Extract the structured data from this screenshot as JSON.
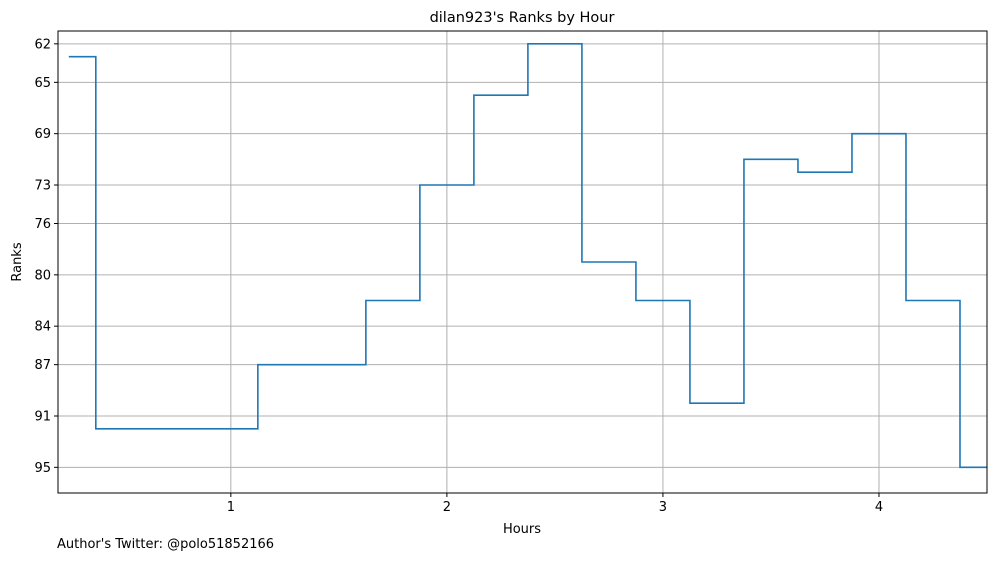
{
  "chart_data": {
    "type": "line",
    "step": "mid",
    "title": "dilan923's Ranks by Hour",
    "xlabel": "Hours",
    "ylabel": "Ranks",
    "y_inverted": true,
    "grid": true,
    "xlim": [
      0.2,
      4.5
    ],
    "ylim": [
      97,
      61
    ],
    "x_ticks": [
      1,
      2,
      3,
      4
    ],
    "x_tick_labels": [
      "1",
      "2",
      "3",
      "4"
    ],
    "y_ticks": [
      62,
      65,
      69,
      73,
      76,
      80,
      84,
      87,
      91,
      95
    ],
    "y_tick_labels": [
      "62",
      "65",
      "69",
      "73",
      "76",
      "80",
      "84",
      "87",
      "91",
      "95"
    ],
    "color": "#1f77b4",
    "series": [
      {
        "x": [
          0.25,
          0.5,
          0.75,
          1.0,
          1.25,
          1.5,
          1.75,
          2.0,
          2.25,
          2.5,
          2.75,
          3.0,
          3.25,
          3.5,
          3.75,
          4.0,
          4.25,
          4.5
        ],
        "values": [
          63,
          92,
          92,
          92,
          87,
          87,
          82,
          73,
          66,
          62,
          79,
          82,
          90,
          71,
          72,
          69,
          82,
          95
        ]
      }
    ]
  },
  "footer": {
    "text": "Author's Twitter: @polo51852166"
  }
}
